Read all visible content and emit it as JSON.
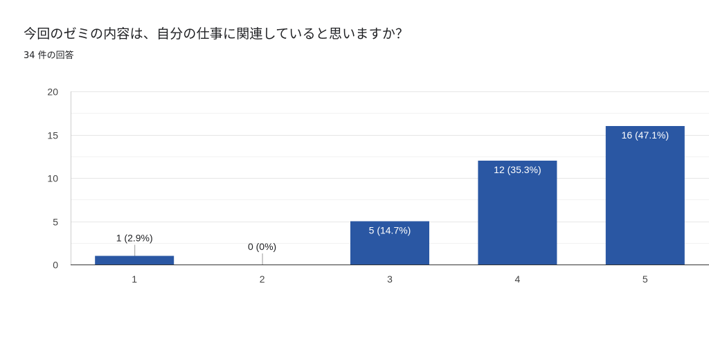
{
  "question": {
    "title": "今回のゼミの内容は、自分の仕事に関連していると思いますか？",
    "response_count": "34 件の回答"
  },
  "colors": {
    "bar": "#2a57a3",
    "grid": "#e6e6e6",
    "axis": "#333333",
    "tick_text": "#444444",
    "label_inside": "#ffffff",
    "label_outside": "#202124"
  },
  "chart_data": {
    "type": "bar",
    "categories": [
      "1",
      "2",
      "3",
      "4",
      "5"
    ],
    "values": [
      1,
      0,
      5,
      12,
      16
    ],
    "data_labels": [
      "1 (2.9%)",
      "0 (0%)",
      "5 (14.7%)",
      "12 (35.3%)",
      "16 (47.1%)"
    ],
    "yticks": [
      0,
      5,
      10,
      15,
      20
    ],
    "ylim": [
      0,
      20
    ],
    "grid": true,
    "legend": "none"
  }
}
